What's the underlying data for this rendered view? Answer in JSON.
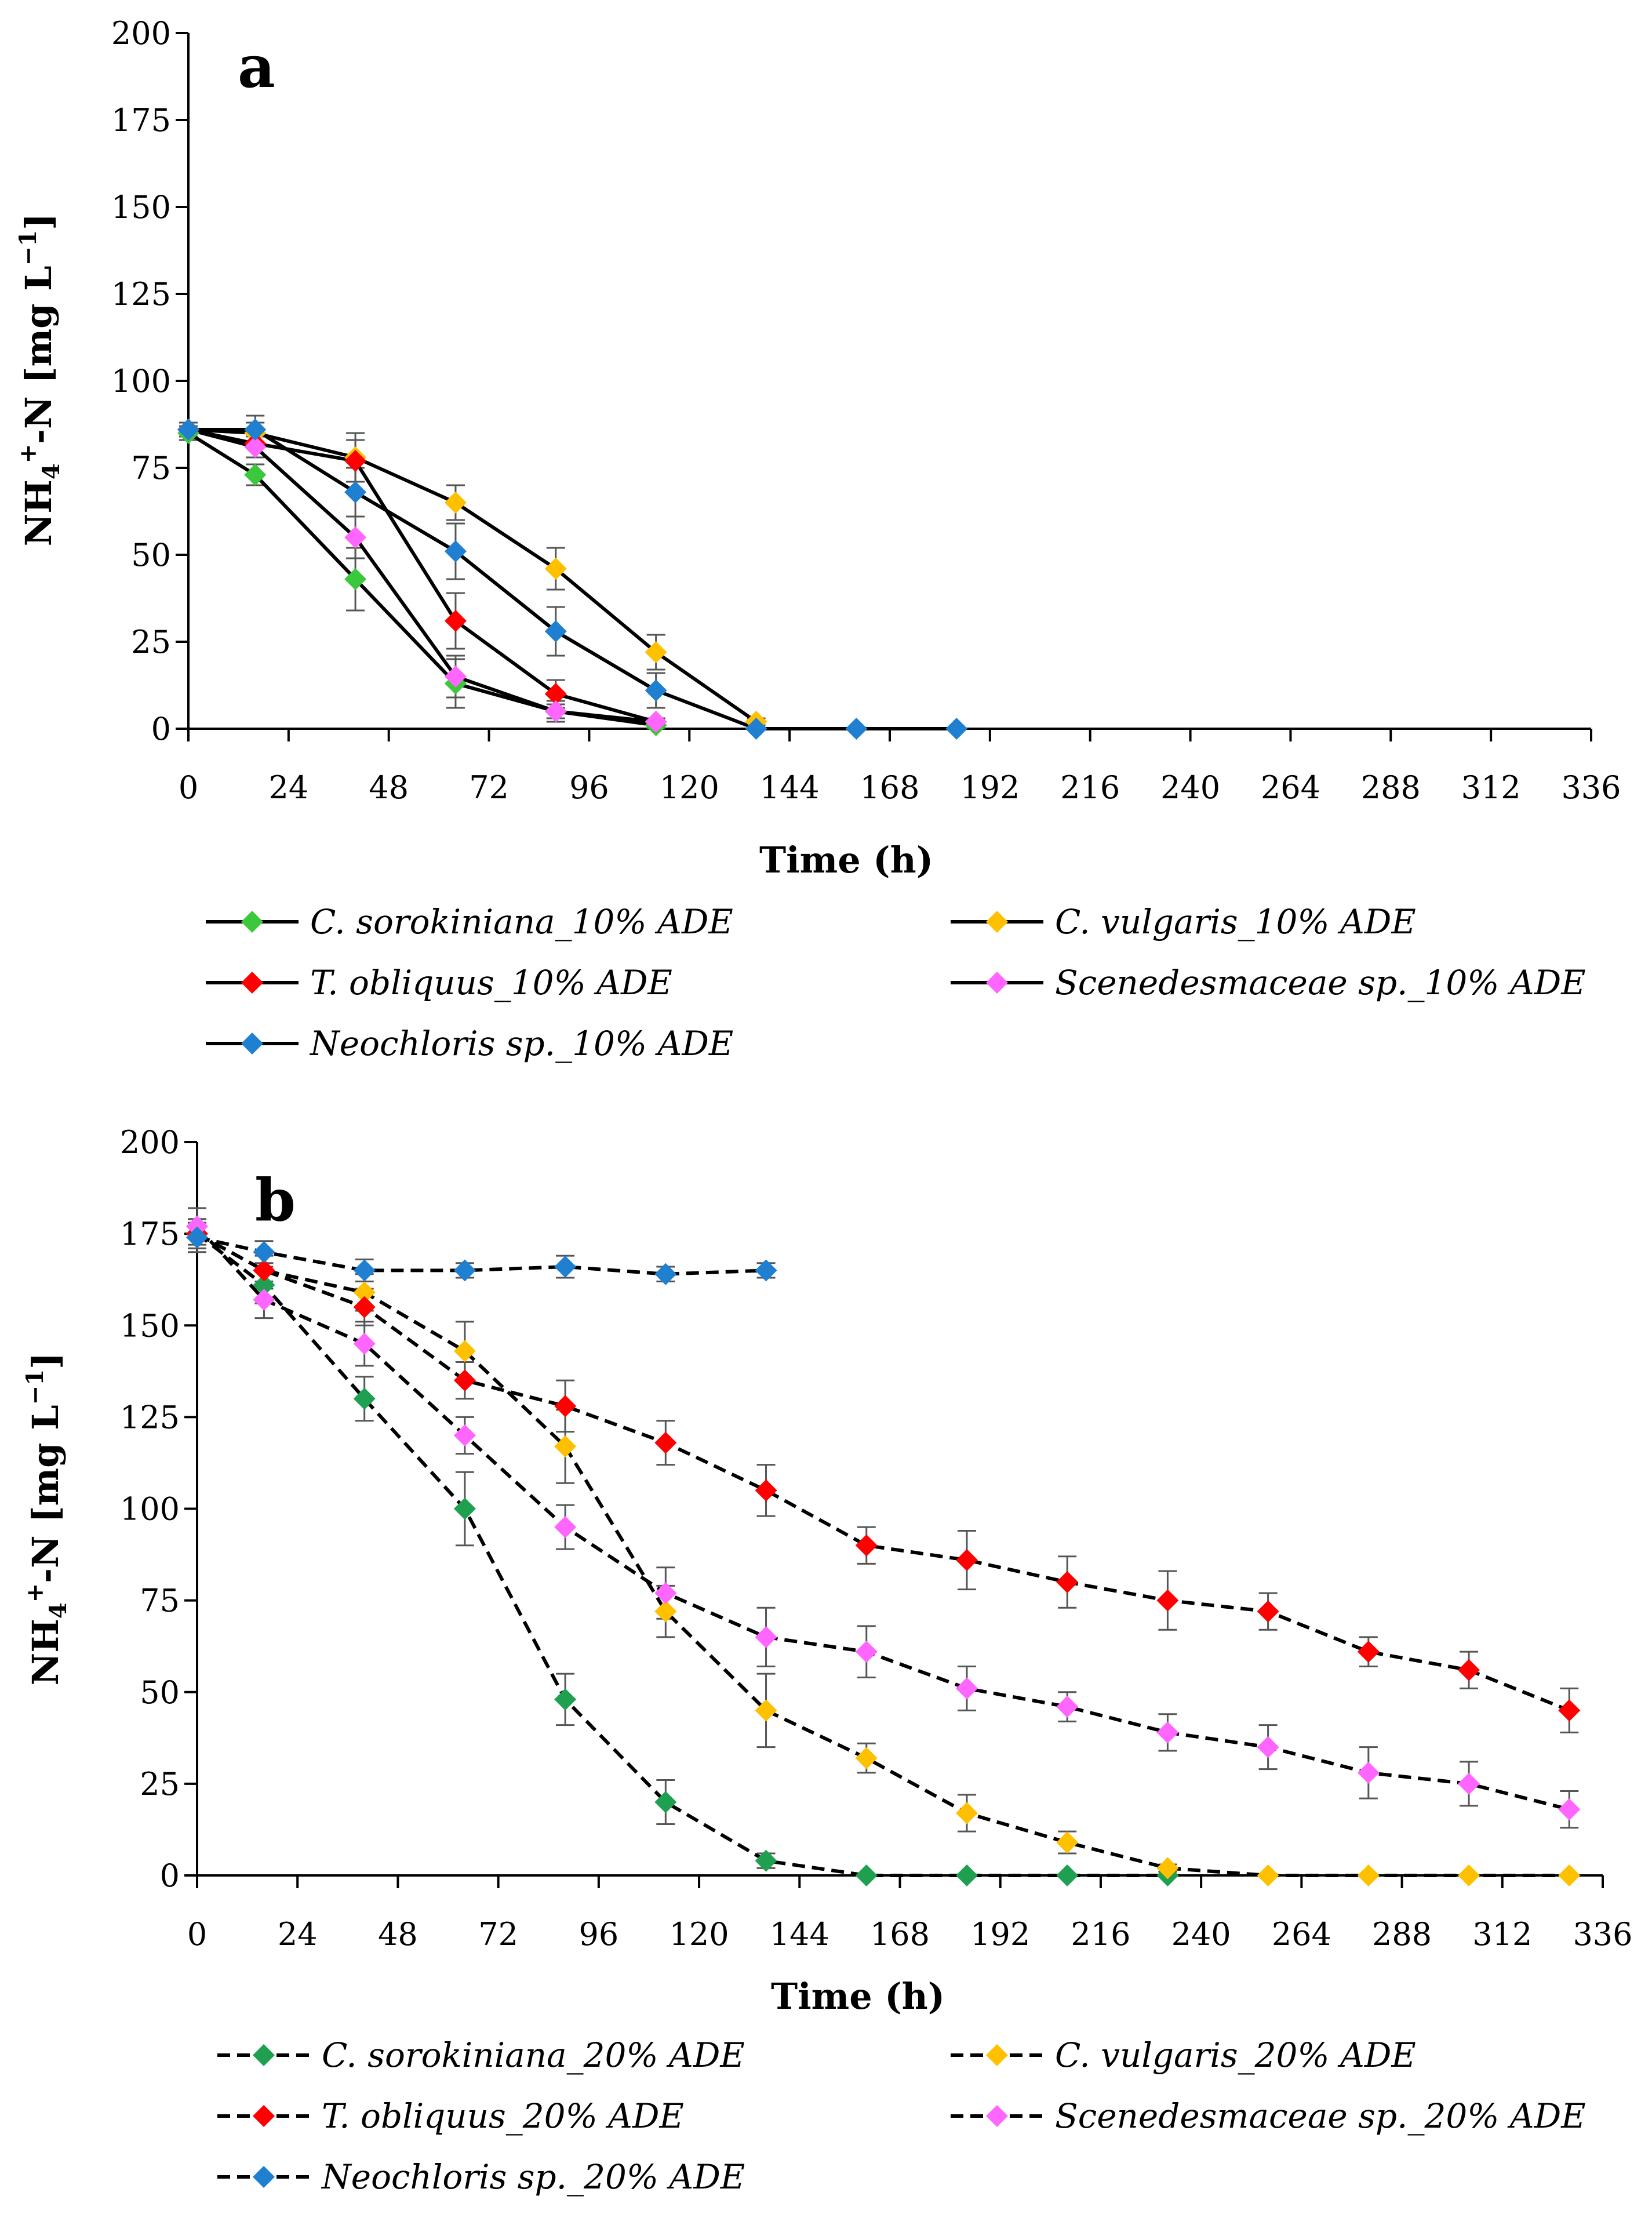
{
  "chart_data": [
    {
      "panel": "a",
      "type": "line",
      "line_style": "solid",
      "xlabel": "Time (h)",
      "ylabel": "NH4+-N [mg L−1]",
      "ylabel_parts": {
        "main": "NH",
        "sub": "4",
        "sup": "+",
        "mid": "-N [mg L",
        "exp": "−1",
        "end": "]"
      },
      "xlim": [
        0,
        336
      ],
      "ylim": [
        0,
        200
      ],
      "x_ticks": [
        0,
        24,
        48,
        72,
        96,
        120,
        144,
        168,
        192,
        216,
        240,
        264,
        288,
        312,
        336
      ],
      "y_ticks": [
        0,
        25,
        50,
        75,
        100,
        125,
        150,
        175,
        200
      ],
      "grid": false,
      "series": [
        {
          "name": "C. sorokiniana_10% ADE",
          "color": "#3cc83c",
          "x": [
            0,
            16,
            40,
            64,
            88,
            112
          ],
          "y": [
            85,
            73,
            43,
            13,
            5,
            1
          ],
          "err": [
            2,
            3,
            9,
            7,
            2,
            1
          ]
        },
        {
          "name": "C. vulgaris_10% ADE",
          "color": "#ffc000",
          "x": [
            0,
            16,
            40,
            64,
            88,
            112,
            136
          ],
          "y": [
            86,
            85,
            78,
            65,
            46,
            22,
            2
          ],
          "err": [
            2,
            3,
            7,
            5,
            6,
            5,
            1
          ]
        },
        {
          "name": "T. obliquus_10% ADE",
          "color": "#ff0000",
          "x": [
            0,
            16,
            40,
            64,
            88,
            112
          ],
          "y": [
            86,
            82,
            77,
            31,
            10,
            2
          ],
          "err": [
            2,
            4,
            6,
            8,
            4,
            1
          ]
        },
        {
          "name": "Scenedesmaceae sp._10% ADE",
          "color": "#ff66ff",
          "x": [
            0,
            16,
            40,
            64,
            88,
            112
          ],
          "y": [
            86,
            81,
            55,
            15,
            5,
            2
          ],
          "err": [
            2,
            3,
            6,
            6,
            3,
            1
          ]
        },
        {
          "name": "Neochloris sp._10% ADE",
          "color": "#1f7fd0",
          "x": [
            0,
            16,
            40,
            64,
            88,
            112,
            136,
            160,
            184
          ],
          "y": [
            86,
            86,
            68,
            51,
            28,
            11,
            0,
            0,
            0
          ],
          "err": [
            2,
            4,
            7,
            8,
            7,
            5,
            0,
            0,
            0
          ]
        }
      ]
    },
    {
      "panel": "b",
      "type": "line",
      "line_style": "dashed",
      "xlabel": "Time (h)",
      "ylabel": "NH4+-N [mg L−1]",
      "ylabel_parts": {
        "main": "NH",
        "sub": "4",
        "sup": "+",
        "mid": "-N [mg L",
        "exp": "−1",
        "end": "]"
      },
      "xlim": [
        0,
        336
      ],
      "ylim": [
        0,
        200
      ],
      "x_ticks": [
        0,
        24,
        48,
        72,
        96,
        120,
        144,
        168,
        192,
        216,
        240,
        264,
        288,
        312,
        336
      ],
      "y_ticks": [
        0,
        25,
        50,
        75,
        100,
        125,
        150,
        175,
        200
      ],
      "grid": false,
      "series": [
        {
          "name": "C. sorokiniana_20% ADE",
          "color": "#1ea050",
          "x": [
            0,
            16,
            40,
            64,
            88,
            112,
            136,
            160,
            184,
            208,
            232
          ],
          "y": [
            175,
            161,
            130,
            100,
            48,
            20,
            4,
            0,
            0,
            0,
            0
          ],
          "err": [
            4,
            5,
            6,
            10,
            7,
            6,
            2,
            0,
            0,
            0,
            0
          ]
        },
        {
          "name": "C. vulgaris_20% ADE",
          "color": "#ffc000",
          "x": [
            0,
            16,
            40,
            64,
            88,
            112,
            136,
            160,
            184,
            208,
            232,
            256,
            280,
            304,
            328
          ],
          "y": [
            175,
            165,
            159,
            143,
            117,
            72,
            45,
            32,
            17,
            9,
            2,
            0,
            0,
            0,
            0
          ],
          "err": [
            4,
            5,
            5,
            8,
            10,
            7,
            10,
            4,
            5,
            3,
            1,
            0,
            0,
            0,
            0
          ]
        },
        {
          "name": "T. obliquus_20% ADE",
          "color": "#ff0000",
          "x": [
            0,
            16,
            40,
            64,
            88,
            112,
            136,
            160,
            184,
            208,
            232,
            256,
            280,
            304,
            328
          ],
          "y": [
            175,
            165,
            155,
            135,
            128,
            118,
            105,
            90,
            86,
            80,
            75,
            72,
            61,
            56,
            45
          ],
          "err": [
            4,
            4,
            5,
            5,
            7,
            6,
            7,
            5,
            8,
            7,
            8,
            5,
            4,
            5,
            6
          ]
        },
        {
          "name": "Scenedesmaceae sp._20% ADE",
          "color": "#ff66ff",
          "x": [
            0,
            16,
            40,
            64,
            88,
            112,
            136,
            160,
            184,
            208,
            232,
            256,
            280,
            304,
            328
          ],
          "y": [
            177,
            157,
            145,
            120,
            95,
            77,
            65,
            61,
            51,
            46,
            39,
            35,
            28,
            25,
            18
          ],
          "err": [
            5,
            5,
            6,
            5,
            6,
            7,
            8,
            7,
            6,
            4,
            5,
            6,
            7,
            6,
            5
          ]
        },
        {
          "name": "Neochloris sp._20% ADE",
          "color": "#1f7fd0",
          "x": [
            0,
            16,
            40,
            64,
            88,
            112,
            136
          ],
          "y": [
            174,
            170,
            165,
            165,
            166,
            164,
            165
          ],
          "err": [
            4,
            3,
            3,
            2,
            3,
            2,
            2
          ]
        }
      ]
    }
  ]
}
